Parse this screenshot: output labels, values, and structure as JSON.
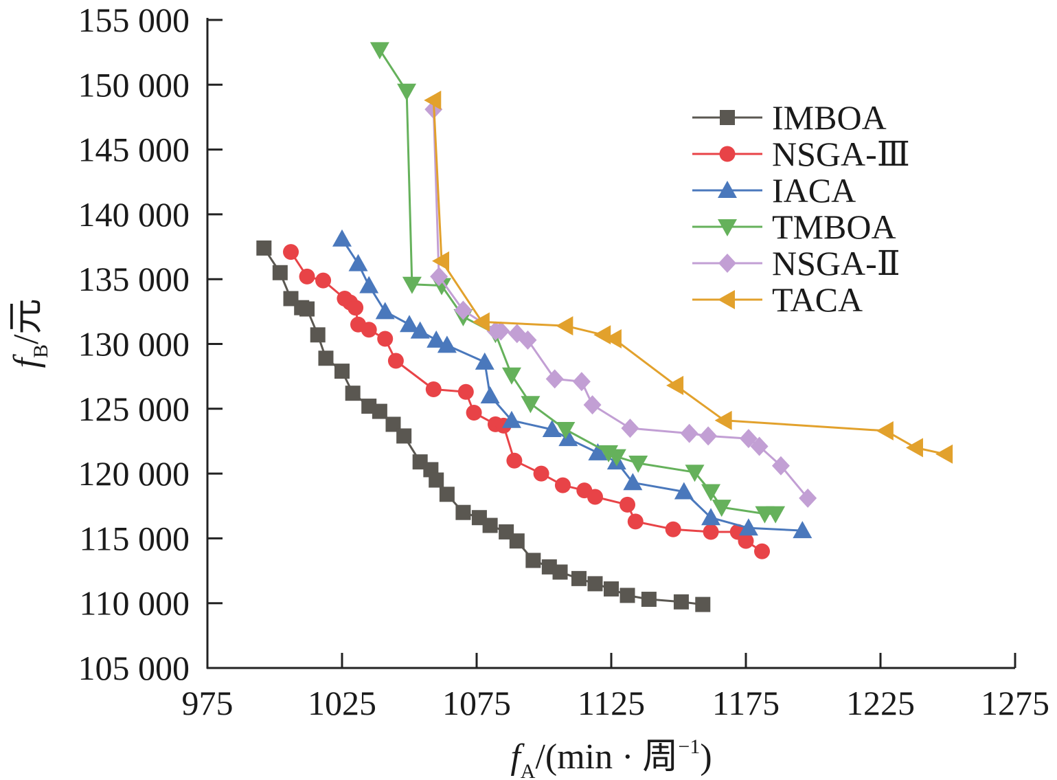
{
  "chart_data": {
    "type": "line",
    "xlabel": {
      "main": "f",
      "sub": "A",
      "rest": "/(min · 周",
      "sup": "−1",
      "end": ")"
    },
    "ylabel": {
      "main": "f",
      "sub": "B",
      "rest": "/元"
    },
    "xlim": [
      975,
      1275
    ],
    "ylim": [
      105000,
      155000
    ],
    "xticks": [
      975,
      1025,
      1075,
      1125,
      1175,
      1225,
      1275
    ],
    "xtick_labels": [
      "975",
      "1025",
      "1075",
      "1125",
      "1175",
      "1225",
      "1275"
    ],
    "yticks": [
      105000,
      110000,
      115000,
      120000,
      125000,
      130000,
      135000,
      140000,
      145000,
      150000,
      155000
    ],
    "ytick_labels": [
      "105 000",
      "110 000",
      "115 000",
      "120 000",
      "125 000",
      "130 000",
      "135 000",
      "140 000",
      "145 000",
      "150 000",
      "155 000"
    ],
    "legend_position": "top-right",
    "series": [
      {
        "name": "IMBOA",
        "color": "#5a5751",
        "marker": "square",
        "points": [
          [
            996,
            137400
          ],
          [
            1002,
            135500
          ],
          [
            1006,
            133500
          ],
          [
            1010,
            132800
          ],
          [
            1012,
            132700
          ],
          [
            1016,
            130700
          ],
          [
            1019,
            128900
          ],
          [
            1025,
            127900
          ],
          [
            1029,
            126200
          ],
          [
            1035,
            125200
          ],
          [
            1039,
            124800
          ],
          [
            1044,
            123800
          ],
          [
            1048,
            122900
          ],
          [
            1054,
            120900
          ],
          [
            1058,
            120300
          ],
          [
            1060,
            119500
          ],
          [
            1064,
            118400
          ],
          [
            1070,
            117000
          ],
          [
            1076,
            116600
          ],
          [
            1080,
            116000
          ],
          [
            1086,
            115500
          ],
          [
            1090,
            114800
          ],
          [
            1096,
            113300
          ],
          [
            1102,
            112800
          ],
          [
            1106,
            112400
          ],
          [
            1113,
            111900
          ],
          [
            1119,
            111500
          ],
          [
            1125,
            111100
          ],
          [
            1131,
            110600
          ],
          [
            1139,
            110300
          ],
          [
            1151,
            110100
          ],
          [
            1159,
            109900
          ]
        ]
      },
      {
        "name": "NSGA-Ⅲ",
        "color": "#e84347",
        "marker": "circle",
        "points": [
          [
            1006,
            137100
          ],
          [
            1012,
            135200
          ],
          [
            1018,
            134900
          ],
          [
            1026,
            133500
          ],
          [
            1028,
            133200
          ],
          [
            1030,
            132800
          ],
          [
            1031,
            131500
          ],
          [
            1035,
            131100
          ],
          [
            1041,
            130400
          ],
          [
            1045,
            128700
          ],
          [
            1059,
            126500
          ],
          [
            1071,
            126300
          ],
          [
            1074,
            124700
          ],
          [
            1082,
            123800
          ],
          [
            1085,
            123700
          ],
          [
            1089,
            121000
          ],
          [
            1099,
            120000
          ],
          [
            1107,
            119100
          ],
          [
            1115,
            118700
          ],
          [
            1119,
            118200
          ],
          [
            1131,
            117600
          ],
          [
            1134,
            116300
          ],
          [
            1148,
            115700
          ],
          [
            1162,
            115500
          ],
          [
            1172,
            115500
          ],
          [
            1175,
            114800
          ],
          [
            1181,
            114000
          ]
        ]
      },
      {
        "name": "IACA",
        "color": "#4a78bc",
        "marker": "triangle-up",
        "points": [
          [
            1025,
            138100
          ],
          [
            1031,
            136200
          ],
          [
            1035,
            134500
          ],
          [
            1041,
            132500
          ],
          [
            1050,
            131500
          ],
          [
            1054,
            131000
          ],
          [
            1060,
            130300
          ],
          [
            1064,
            129900
          ],
          [
            1078,
            128600
          ],
          [
            1080,
            126000
          ],
          [
            1088,
            124100
          ],
          [
            1103,
            123400
          ],
          [
            1109,
            122700
          ],
          [
            1120,
            121600
          ],
          [
            1127,
            120900
          ],
          [
            1133,
            119300
          ],
          [
            1152,
            118600
          ],
          [
            1162,
            116600
          ],
          [
            1176,
            115800
          ],
          [
            1196,
            115600
          ]
        ]
      },
      {
        "name": "TMBOA",
        "color": "#65b15b",
        "marker": "triangle-down",
        "points": [
          [
            1039,
            152700
          ],
          [
            1049,
            149500
          ],
          [
            1051,
            134600
          ],
          [
            1062,
            134500
          ],
          [
            1070,
            132100
          ],
          [
            1082,
            130800
          ],
          [
            1088,
            127600
          ],
          [
            1095,
            125400
          ],
          [
            1108,
            123400
          ],
          [
            1124,
            121600
          ],
          [
            1127,
            121300
          ],
          [
            1135,
            120800
          ],
          [
            1156,
            120100
          ],
          [
            1162,
            118600
          ],
          [
            1166,
            117400
          ],
          [
            1182,
            116900
          ],
          [
            1186,
            116900
          ]
        ]
      },
      {
        "name": "NSGA-Ⅱ",
        "color": "#c29fd4",
        "marker": "diamond",
        "points": [
          [
            1059,
            148100
          ],
          [
            1061,
            135200
          ],
          [
            1070,
            132600
          ],
          [
            1082,
            131000
          ],
          [
            1084,
            131000
          ],
          [
            1090,
            130800
          ],
          [
            1094,
            130300
          ],
          [
            1104,
            127300
          ],
          [
            1114,
            127100
          ],
          [
            1118,
            125300
          ],
          [
            1132,
            123500
          ],
          [
            1154,
            123100
          ],
          [
            1161,
            122900
          ],
          [
            1176,
            122700
          ],
          [
            1180,
            122100
          ],
          [
            1188,
            120600
          ],
          [
            1198,
            118100
          ]
        ]
      },
      {
        "name": "TACA",
        "color": "#e2a12c",
        "marker": "triangle-left",
        "points": [
          [
            1059,
            148800
          ],
          [
            1062,
            136400
          ],
          [
            1077,
            131700
          ],
          [
            1108,
            131400
          ],
          [
            1122,
            130700
          ],
          [
            1126,
            130400
          ],
          [
            1149,
            126800
          ],
          [
            1167,
            124100
          ],
          [
            1227,
            123300
          ],
          [
            1238,
            122000
          ],
          [
            1249,
            121500
          ]
        ]
      }
    ]
  }
}
